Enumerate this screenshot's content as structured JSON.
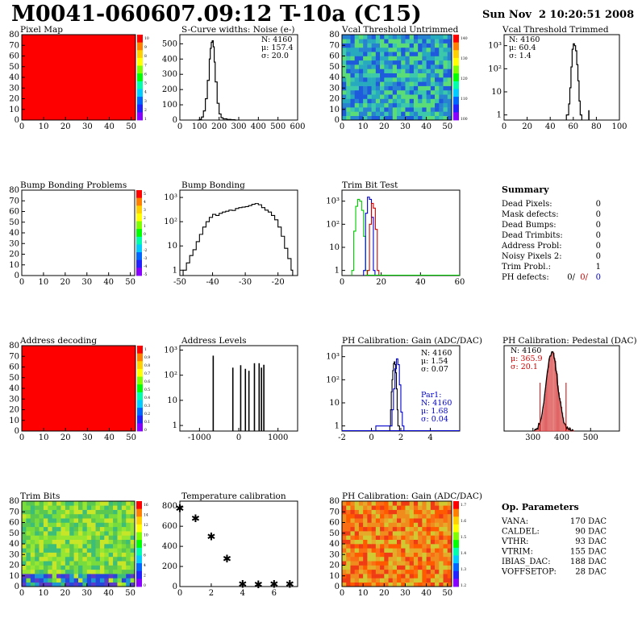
{
  "header": {
    "title": "M0041-060607.09:12 T-10a (C15)",
    "timestamp": "Sun Nov  2 10:20:51 2008"
  },
  "summary": {
    "heading": "Summary",
    "rows": [
      {
        "label": "Dead Pixels:",
        "value": "0"
      },
      {
        "label": "Mask defects:",
        "value": "0"
      },
      {
        "label": "Dead Bumps:",
        "value": "0"
      },
      {
        "label": "Dead Trimbits:",
        "value": "0"
      },
      {
        "label": "Address Probl:",
        "value": "0"
      },
      {
        "label": "Noisy Pixels 2:",
        "value": "0"
      },
      {
        "label": "Trim Probl.:",
        "value": "1"
      }
    ],
    "ph_defects": {
      "label": "PH defects:",
      "values": [
        "0/",
        "0/",
        "0"
      ],
      "colors": [
        "#000000",
        "#cc0000",
        "#0000cc"
      ]
    }
  },
  "op_parameters": {
    "heading": "Op. Parameters",
    "rows": [
      {
        "label": "VANA:",
        "value": "170 DAC"
      },
      {
        "label": "CALDEL:",
        "value": "90 DAC"
      },
      {
        "label": "VTHR:",
        "value": "93 DAC"
      },
      {
        "label": "VTRIM:",
        "value": "155 DAC"
      },
      {
        "label": "IBIAS_DAC:",
        "value": "188 DAC"
      },
      {
        "label": "VOFFSETOP:",
        "value": "28 DAC"
      }
    ]
  },
  "colors": {
    "red_map": "#ff0000",
    "hist_line": "#000000",
    "green": "#00cc00",
    "red": "#cc0000",
    "blue": "#0000cc",
    "pedestal_fill": "#cc0000"
  },
  "chart_data": [
    {
      "id": "pixel-map",
      "type": "heatmap",
      "title": "Pixel Map",
      "pattern": "uniform-red",
      "xlim": [
        0,
        52
      ],
      "ylim": [
        0,
        80
      ],
      "xticks": [
        0,
        10,
        20,
        30,
        40,
        50
      ],
      "yticks": [
        0,
        10,
        20,
        30,
        40,
        50,
        60,
        70,
        80
      ],
      "colorbar": [
        "10",
        "9",
        "8",
        "7",
        "6",
        "5",
        "4",
        "3",
        "2",
        "1"
      ]
    },
    {
      "id": "s-curve",
      "type": "line",
      "title": "S-Curve widths: Noise (e-)",
      "xlim": [
        0,
        600
      ],
      "ylim": [
        0,
        560
      ],
      "xticks": [
        0,
        100,
        200,
        300,
        400,
        500,
        600
      ],
      "yticks": [
        0,
        100,
        200,
        300,
        400,
        500
      ],
      "stats": [
        "N: 4160",
        "μ: 157.4",
        "σ: 20.0"
      ],
      "x": [
        90,
        100,
        110,
        120,
        130,
        140,
        150,
        155,
        160,
        165,
        170,
        175,
        180,
        190,
        200,
        210,
        220,
        240,
        260,
        280
      ],
      "y": [
        0,
        5,
        20,
        60,
        140,
        260,
        400,
        470,
        510,
        520,
        480,
        380,
        250,
        110,
        40,
        15,
        8,
        4,
        2,
        0
      ]
    },
    {
      "id": "vcal-untrimmed",
      "type": "heatmap",
      "title": "Vcal Threshold Untrimmed",
      "pattern": "noise-teal-blue",
      "xlim": [
        0,
        52
      ],
      "ylim": [
        0,
        80
      ],
      "xticks": [
        0,
        10,
        20,
        30,
        40,
        50
      ],
      "yticks": [
        0,
        10,
        20,
        30,
        40,
        50,
        60,
        70,
        80
      ],
      "colorbar": [
        "140",
        "130",
        "120",
        "110",
        "100"
      ]
    },
    {
      "id": "vcal-trimmed",
      "type": "line",
      "title": "Vcal Threshold Trimmed",
      "log": true,
      "xlim": [
        0,
        100
      ],
      "ylim": [
        0.6,
        3000
      ],
      "xticks": [
        0,
        20,
        40,
        60,
        80,
        100
      ],
      "ytickLabels": [
        "1",
        "10",
        "10²",
        "10³"
      ],
      "ytickValues": [
        1,
        10,
        100,
        1000
      ],
      "stats": [
        "N: 4160",
        "μ: 60.4",
        "σ: 1.4"
      ],
      "x": [
        54,
        56,
        57,
        58,
        59,
        60,
        61,
        62,
        63,
        64,
        65,
        66,
        73,
        74
      ],
      "y": [
        1,
        3,
        15,
        120,
        700,
        1200,
        1000,
        600,
        150,
        30,
        4,
        1,
        1,
        1
      ]
    },
    {
      "id": "bump-map",
      "type": "heatmap",
      "title": "Bump Bonding Problems",
      "pattern": "empty",
      "xlim": [
        0,
        52
      ],
      "ylim": [
        0,
        80
      ],
      "xticks": [
        0,
        10,
        20,
        30,
        40,
        50
      ],
      "yticks": [
        0,
        10,
        20,
        30,
        40,
        50,
        60,
        70,
        80
      ],
      "colorbar": [
        "5",
        "4",
        "3",
        "2",
        "1",
        "0",
        "-1",
        "-2",
        "-3",
        "-4",
        "-5"
      ]
    },
    {
      "id": "bump-bonding",
      "type": "line",
      "title": "Bump Bonding",
      "log": true,
      "xlim": [
        -50,
        -14
      ],
      "ylim": [
        0.6,
        2000
      ],
      "xticks": [
        -50,
        -40,
        -30,
        -20
      ],
      "ytickLabels": [
        "1",
        "10",
        "10²",
        "10³"
      ],
      "ytickValues": [
        1,
        10,
        100,
        1000
      ],
      "x": [
        -49,
        -48,
        -47,
        -46,
        -45,
        -44,
        -43,
        -42,
        -41,
        -40,
        -39,
        -38,
        -37,
        -36,
        -35,
        -34,
        -33,
        -32,
        -31,
        -30,
        -29,
        -28,
        -27,
        -26,
        -25,
        -24,
        -23,
        -22,
        -21,
        -20,
        -19,
        -18,
        -17,
        -16
      ],
      "y": [
        1,
        2,
        4,
        7,
        15,
        30,
        60,
        100,
        150,
        200,
        180,
        220,
        250,
        270,
        300,
        290,
        350,
        380,
        400,
        420,
        460,
        520,
        560,
        500,
        380,
        300,
        250,
        180,
        120,
        60,
        25,
        8,
        3,
        1
      ]
    },
    {
      "id": "trim-bit-test",
      "type": "line",
      "title": "Trim Bit Test",
      "log": true,
      "xlim": [
        0,
        60
      ],
      "ylim": [
        0.6,
        3000
      ],
      "xticks": [
        0,
        20,
        40,
        60
      ],
      "ytickLabels": [
        "1",
        "10",
        "10²",
        "10³"
      ],
      "ytickValues": [
        1,
        10,
        100,
        1000
      ],
      "series": [
        {
          "color": "green",
          "x": [
            5,
            6,
            7,
            8,
            9,
            10,
            11,
            12
          ],
          "y": [
            1,
            50,
            600,
            1200,
            1000,
            400,
            30,
            1
          ]
        },
        {
          "color": "blue",
          "x": [
            11,
            12,
            13,
            14,
            15,
            16
          ],
          "y": [
            1,
            300,
            1500,
            1200,
            200,
            1
          ]
        },
        {
          "color": "red",
          "x": [
            13,
            14,
            15,
            16,
            17,
            18
          ],
          "y": [
            1,
            100,
            800,
            500,
            60,
            1
          ]
        }
      ]
    },
    {
      "id": "address-decoding",
      "type": "heatmap",
      "title": "Address decoding",
      "pattern": "uniform-red",
      "xlim": [
        0,
        52
      ],
      "ylim": [
        0,
        80
      ],
      "xticks": [
        0,
        10,
        20,
        30,
        40,
        50
      ],
      "yticks": [
        0,
        10,
        20,
        30,
        40,
        50,
        60,
        70,
        80
      ],
      "colorbar": [
        "1",
        "0.9",
        "0.8",
        "0.7",
        "0.6",
        "0.5",
        "0.4",
        "0.3",
        "0.2",
        "0.1",
        "0"
      ]
    },
    {
      "id": "address-levels",
      "type": "bar",
      "title": "Address Levels",
      "log": true,
      "xlim": [
        -1500,
        1500
      ],
      "ylim": [
        0.6,
        1500
      ],
      "xticks": [
        -1000,
        0,
        1000
      ],
      "ytickLabels": [
        "1",
        "10",
        "10²",
        "10³"
      ],
      "ytickValues": [
        1,
        10,
        100,
        1000
      ],
      "x": [
        -650,
        -150,
        50,
        170,
        260,
        400,
        520,
        580,
        640
      ],
      "y": [
        600,
        200,
        250,
        180,
        150,
        300,
        300,
        200,
        260
      ]
    },
    {
      "id": "ph-gain-hist",
      "type": "line",
      "title": "PH Calibration: Gain (ADC/DAC)",
      "log": true,
      "xlim": [
        -2,
        6
      ],
      "ylim": [
        0.6,
        3000
      ],
      "xticks": [
        -2,
        0,
        2,
        4
      ],
      "ytickLabels": [
        "1",
        "10",
        "10²",
        "10³"
      ],
      "ytickValues": [
        1,
        10,
        100,
        1000
      ],
      "stats": [
        "N: 4160",
        "μ: 1.54",
        "σ: 0.07"
      ],
      "fit_stats": [
        "Par1:",
        "N: 4160",
        "μ: 1.68",
        "σ: 0.04"
      ],
      "series": [
        {
          "color": "hist_line",
          "x": [
            1.25,
            1.3,
            1.35,
            1.4,
            1.45,
            1.5,
            1.55,
            1.6,
            1.65,
            1.7,
            1.75,
            1.8
          ],
          "y": [
            1,
            5,
            30,
            100,
            250,
            500,
            600,
            450,
            200,
            40,
            5,
            1
          ]
        },
        {
          "color": "blue",
          "x": [
            0.3,
            1.3,
            1.4,
            1.5,
            1.6,
            1.7,
            1.8,
            1.9,
            2.0,
            2.1
          ],
          "y": [
            1,
            1,
            5,
            40,
            300,
            800,
            450,
            60,
            4,
            1
          ]
        }
      ]
    },
    {
      "id": "ph-pedestal",
      "type": "line",
      "title": "PH Calibration: Pedestal (DAC)",
      "xlim": [
        200,
        600
      ],
      "ylim": [
        0,
        100
      ],
      "xticks": [
        300,
        400,
        500
      ],
      "yticks": [],
      "stats": [
        "N: 4160",
        "μ: 365.9",
        "σ: 20.1"
      ],
      "x": [
        310,
        320,
        330,
        340,
        350,
        355,
        360,
        365,
        370,
        375,
        380,
        390,
        400,
        410,
        420,
        430
      ],
      "y": [
        1,
        5,
        15,
        30,
        55,
        70,
        85,
        95,
        88,
        75,
        60,
        40,
        22,
        10,
        4,
        1
      ],
      "markers": [
        325,
        415
      ]
    },
    {
      "id": "trim-bits",
      "type": "heatmap",
      "title": "Trim Bits",
      "pattern": "noise-green-bottom",
      "xlim": [
        0,
        52
      ],
      "ylim": [
        0,
        80
      ],
      "xticks": [
        0,
        10,
        20,
        30,
        40,
        50
      ],
      "yticks": [
        0,
        10,
        20,
        30,
        40,
        50,
        60,
        70,
        80
      ],
      "colorbar": [
        "16",
        "14",
        "12",
        "10",
        "8",
        "6",
        "4",
        "2",
        "0"
      ]
    },
    {
      "id": "temperature",
      "type": "scatter",
      "title": "Temperature calibration",
      "xlim": [
        0,
        7.5
      ],
      "ylim": [
        0,
        850
      ],
      "xticks": [
        0,
        2,
        4,
        6
      ],
      "yticks": [
        0,
        200,
        400,
        600,
        800
      ],
      "x": [
        0,
        1,
        2,
        3,
        4,
        5,
        6,
        7
      ],
      "y": [
        780,
        680,
        500,
        280,
        30,
        25,
        30,
        30
      ]
    },
    {
      "id": "ph-gain-map",
      "type": "heatmap",
      "title": "PH Calibration: Gain (ADC/DAC)",
      "pattern": "noise-orange",
      "xlim": [
        0,
        52
      ],
      "ylim": [
        0,
        80
      ],
      "xticks": [
        0,
        10,
        20,
        30,
        40,
        50
      ],
      "yticks": [
        0,
        10,
        20,
        30,
        40,
        50,
        60,
        70,
        80
      ],
      "colorbar": [
        "1.7",
        "1.6",
        "1.5",
        "1.4",
        "1.3",
        "1.2"
      ]
    }
  ]
}
